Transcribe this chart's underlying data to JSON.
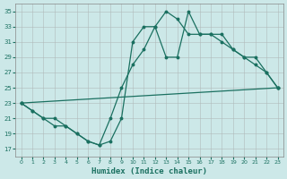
{
  "xlabel": "Humidex (Indice chaleur)",
  "bg_color": "#cce8e8",
  "line_color": "#1a7060",
  "xlim": [
    -0.5,
    23.5
  ],
  "ylim": [
    16,
    36
  ],
  "xticks": [
    0,
    1,
    2,
    3,
    4,
    5,
    6,
    7,
    8,
    9,
    10,
    11,
    12,
    13,
    14,
    15,
    16,
    17,
    18,
    19,
    20,
    21,
    22,
    23
  ],
  "yticks": [
    17,
    19,
    21,
    23,
    25,
    27,
    29,
    31,
    33,
    35
  ],
  "line1_x": [
    0,
    1,
    2,
    3,
    4,
    5,
    6,
    7,
    8,
    9,
    10,
    11,
    12,
    13,
    14,
    15,
    16,
    17,
    18,
    19,
    20,
    21,
    22,
    23
  ],
  "line1_y": [
    23,
    22,
    21,
    20,
    20,
    19,
    18,
    17.5,
    18,
    21,
    31,
    33,
    33,
    29,
    29,
    35,
    32,
    32,
    32,
    30,
    29,
    29,
    27,
    25
  ],
  "line2_x": [
    0,
    1,
    2,
    3,
    4,
    5,
    6,
    7,
    8,
    9,
    10,
    11,
    12,
    13,
    14,
    15,
    16,
    17,
    18,
    19,
    20,
    21,
    22,
    23
  ],
  "line2_y": [
    23,
    22,
    21,
    21,
    20,
    19,
    18,
    17.5,
    21,
    25,
    28,
    30,
    33,
    35,
    34,
    32,
    32,
    32,
    31,
    30,
    29,
    28,
    27,
    25
  ],
  "line3_x": [
    0,
    23
  ],
  "line3_y": [
    23,
    25
  ]
}
